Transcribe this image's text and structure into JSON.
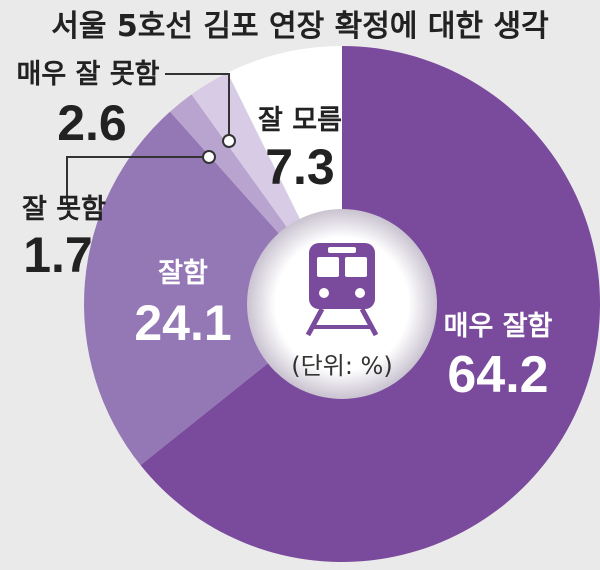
{
  "chart_data": {
    "type": "pie",
    "title": "서울 5호선 김포 연장 확정에 대한 생각",
    "unit_note": "(단위: %)",
    "slices": [
      {
        "name": "매우 잘함",
        "value": 64.2
      },
      {
        "name": "잘함",
        "value": 24.1
      },
      {
        "name": "잘 못함",
        "value": 1.7
      },
      {
        "name": "매우 잘 못함",
        "value": 2.6
      },
      {
        "name": "잘 모름",
        "value": 7.3
      }
    ],
    "colors": {
      "very_good": "#7a4a9c",
      "good": "#9478b6",
      "bad": "#b9a4cf",
      "very_bad": "#d8cbe5",
      "dont_know": "#ffffff",
      "center": "#ffffff",
      "icon": "#7a4a9c"
    },
    "center_icon": "train-icon"
  }
}
